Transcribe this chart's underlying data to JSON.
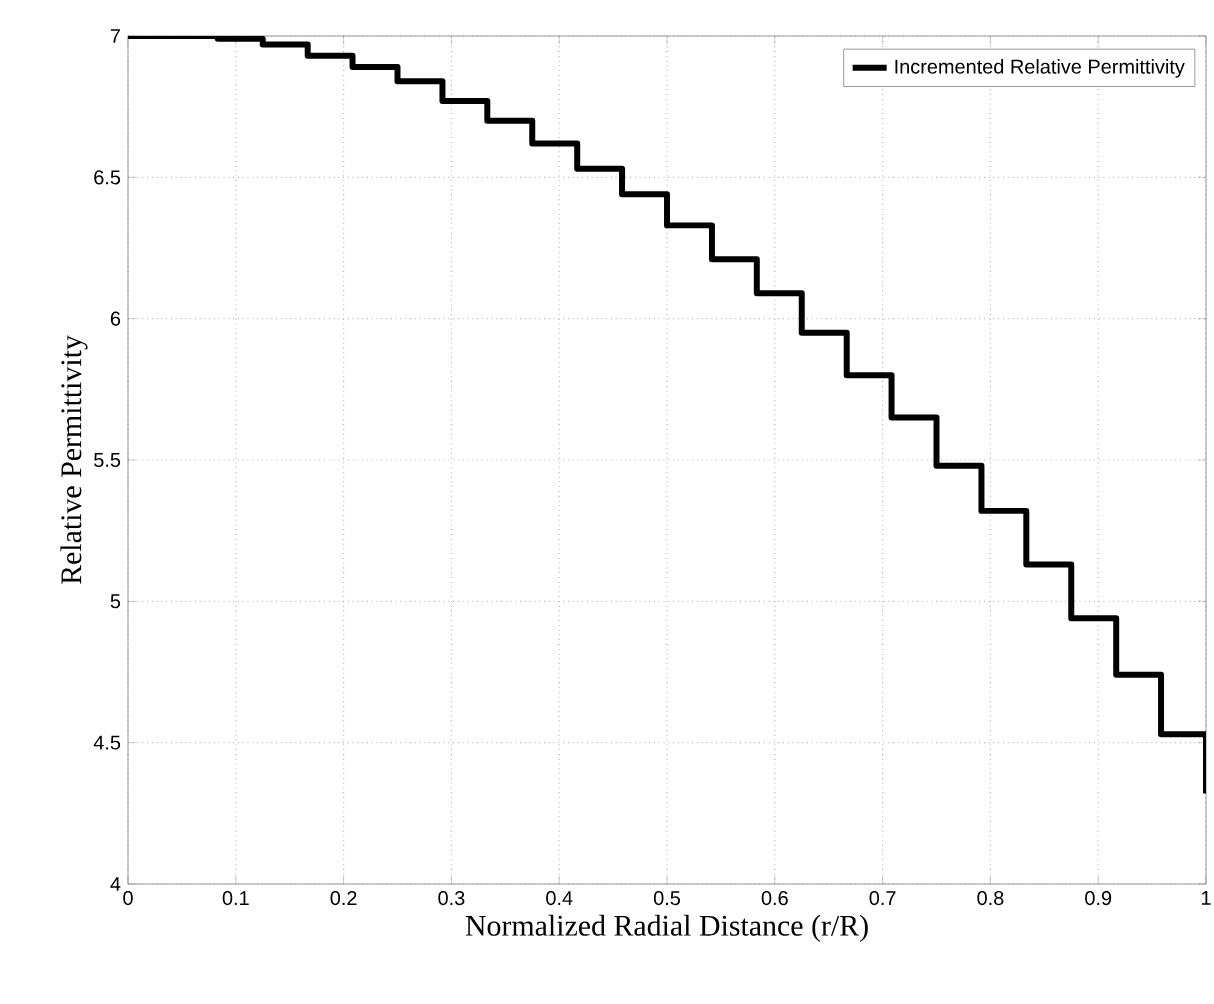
{
  "chart_data": {
    "type": "step",
    "xlabel": "Normalized Radial Distance (r/R)",
    "ylabel": "Relative Permittivity",
    "x": [
      0,
      0.0417,
      0.0833,
      0.125,
      0.1667,
      0.2083,
      0.25,
      0.2917,
      0.3333,
      0.375,
      0.4167,
      0.4583,
      0.5,
      0.5417,
      0.5833,
      0.625,
      0.6667,
      0.7083,
      0.75,
      0.7917,
      0.8333,
      0.875,
      0.9167,
      0.9583,
      1.0
    ],
    "series": [
      {
        "name": "Incremented Relative Permittivity",
        "color": "#000000",
        "values": [
          7.0,
          7.0,
          6.99,
          6.97,
          6.93,
          6.89,
          6.84,
          6.77,
          6.7,
          6.62,
          6.53,
          6.44,
          6.33,
          6.21,
          6.09,
          5.95,
          5.8,
          5.65,
          5.48,
          5.32,
          5.13,
          4.94,
          4.74,
          4.53,
          4.32
        ]
      }
    ],
    "xlim": [
      0,
      1
    ],
    "ylim": [
      4,
      7
    ],
    "xticks": [
      0,
      0.1,
      0.2,
      0.3,
      0.4,
      0.5,
      0.6,
      0.7,
      0.8,
      0.9,
      1
    ],
    "yticks": [
      4,
      4.5,
      5,
      5.5,
      6,
      6.5,
      7
    ],
    "grid": true,
    "legend": "top right",
    "line_style": "solid"
  }
}
